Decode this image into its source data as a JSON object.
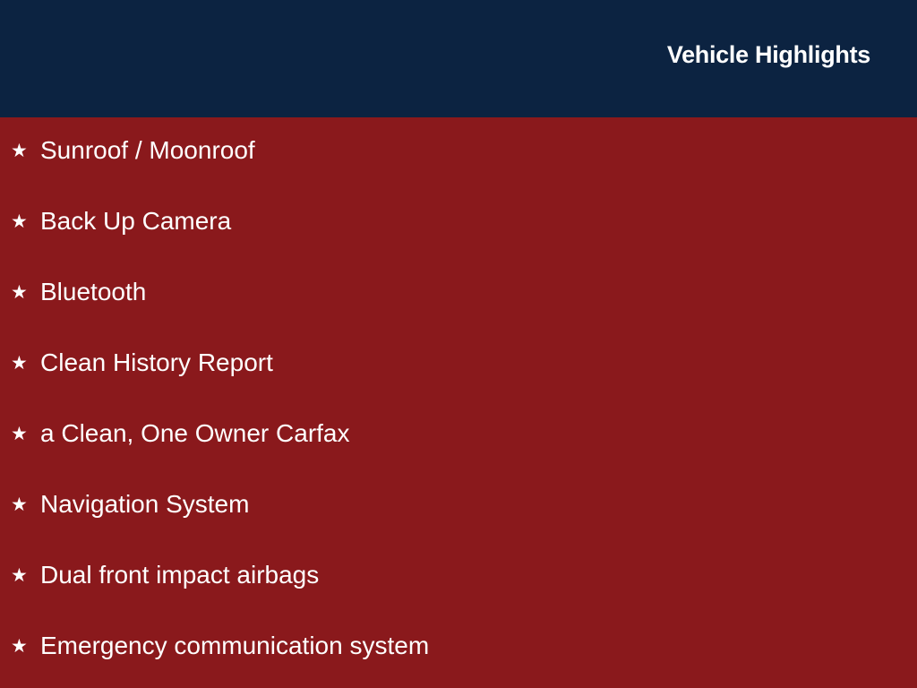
{
  "header": {
    "title": "Vehicle Highlights"
  },
  "colors": {
    "header_bg": "#0c2341",
    "body_bg": "#8a191c",
    "text": "#ffffff"
  },
  "bullet_icon": "star-icon",
  "highlights": [
    "Sunroof / Moonroof",
    "Back Up Camera",
    "Bluetooth",
    "Clean History Report",
    "a Clean, One Owner Carfax",
    "Navigation System",
    "Dual front impact airbags",
    "Emergency communication system"
  ]
}
